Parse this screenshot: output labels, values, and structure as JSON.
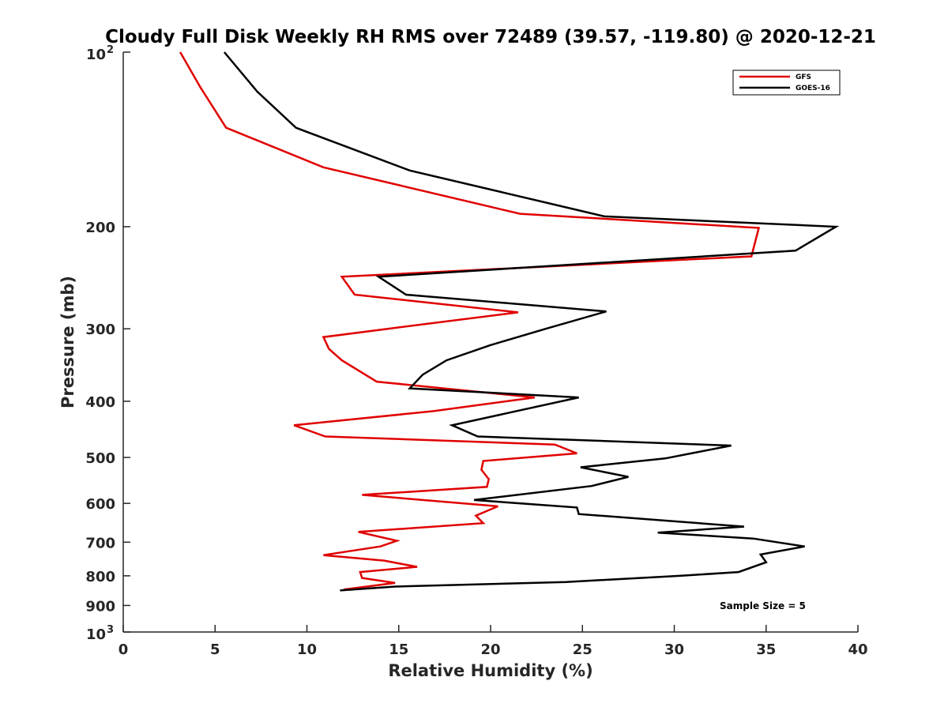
{
  "chart_data": {
    "type": "line",
    "title": "Cloudy Full Disk Weekly RH RMS over 72489 (39.57, -119.80) @ 2020-12-21",
    "xlabel": "Relative Humidity (%)",
    "ylabel": "Pressure (mb)",
    "xlim": [
      0,
      40
    ],
    "ylim": [
      100,
      1000
    ],
    "y_scale": "log",
    "y_inverted": true,
    "grid": false,
    "legend_position": "top-right",
    "x_ticks": [
      0,
      5,
      10,
      15,
      20,
      25,
      30,
      35,
      40
    ],
    "x_tick_labels": [
      "0",
      "5",
      "10",
      "15",
      "20",
      "25",
      "30",
      "35",
      "40"
    ],
    "y_ticks": [
      200,
      300,
      400,
      500,
      600,
      700,
      800,
      900
    ],
    "y_tick_labels": [
      "200",
      "300",
      "400",
      "500",
      "600",
      "700",
      "800",
      "900"
    ],
    "y_end_labels": [
      {
        "value": 100,
        "base": "10",
        "exponent": "2"
      },
      {
        "value": 1000,
        "base": "10",
        "exponent": "3"
      }
    ],
    "series": [
      {
        "name": "GFS",
        "color": "#e00000",
        "x": [
          3.1,
          4.2,
          5.6,
          10.9,
          21.6,
          34.6,
          34.2,
          11.9,
          12.6,
          21.5,
          14.4,
          10.9,
          11.2,
          11.9,
          13.8,
          22.4,
          16.9,
          9.3,
          11.0,
          23.5,
          24.7,
          19.6,
          19.5,
          19.9,
          19.8,
          13.0,
          20.4,
          19.2,
          19.6,
          12.8,
          14.9,
          14.0,
          10.9,
          14.2,
          16.0,
          12.9,
          13.0,
          14.8,
          12.0
        ],
        "y": [
          100,
          115,
          135,
          158,
          190,
          201,
          225,
          244,
          262,
          281,
          300,
          310,
          325,
          340,
          370,
          394,
          416,
          440,
          460,
          475,
          492,
          507,
          525,
          545,
          562,
          580,
          607,
          630,
          649,
          672,
          696,
          712,
          737,
          753,
          772,
          788,
          807,
          823,
          845
        ]
      },
      {
        "name": "GOES-16",
        "color": "#000000",
        "x": [
          5.5,
          7.3,
          9.4,
          15.6,
          26.2,
          38.8,
          36.6,
          13.9,
          15.4,
          26.3,
          23.0,
          20.0,
          17.6,
          16.3,
          15.6,
          24.8,
          17.9,
          19.3,
          33.1,
          29.5,
          24.9,
          27.5,
          25.5,
          19.1,
          24.7,
          24.8,
          33.8,
          29.1,
          34.3,
          37.1,
          34.7,
          35.0,
          33.5,
          30.3,
          24.1,
          14.8,
          11.8
        ],
        "y": [
          100,
          117,
          135,
          160,
          192,
          200,
          220,
          244,
          262,
          280,
          300,
          320,
          340,
          360,
          380,
          394,
          440,
          460,
          477,
          502,
          520,
          540,
          560,
          592,
          610,
          626,
          658,
          674,
          690,
          712,
          735,
          758,
          788,
          800,
          820,
          835,
          848
        ]
      }
    ],
    "annotations": [
      "Sample Size = 5"
    ]
  }
}
